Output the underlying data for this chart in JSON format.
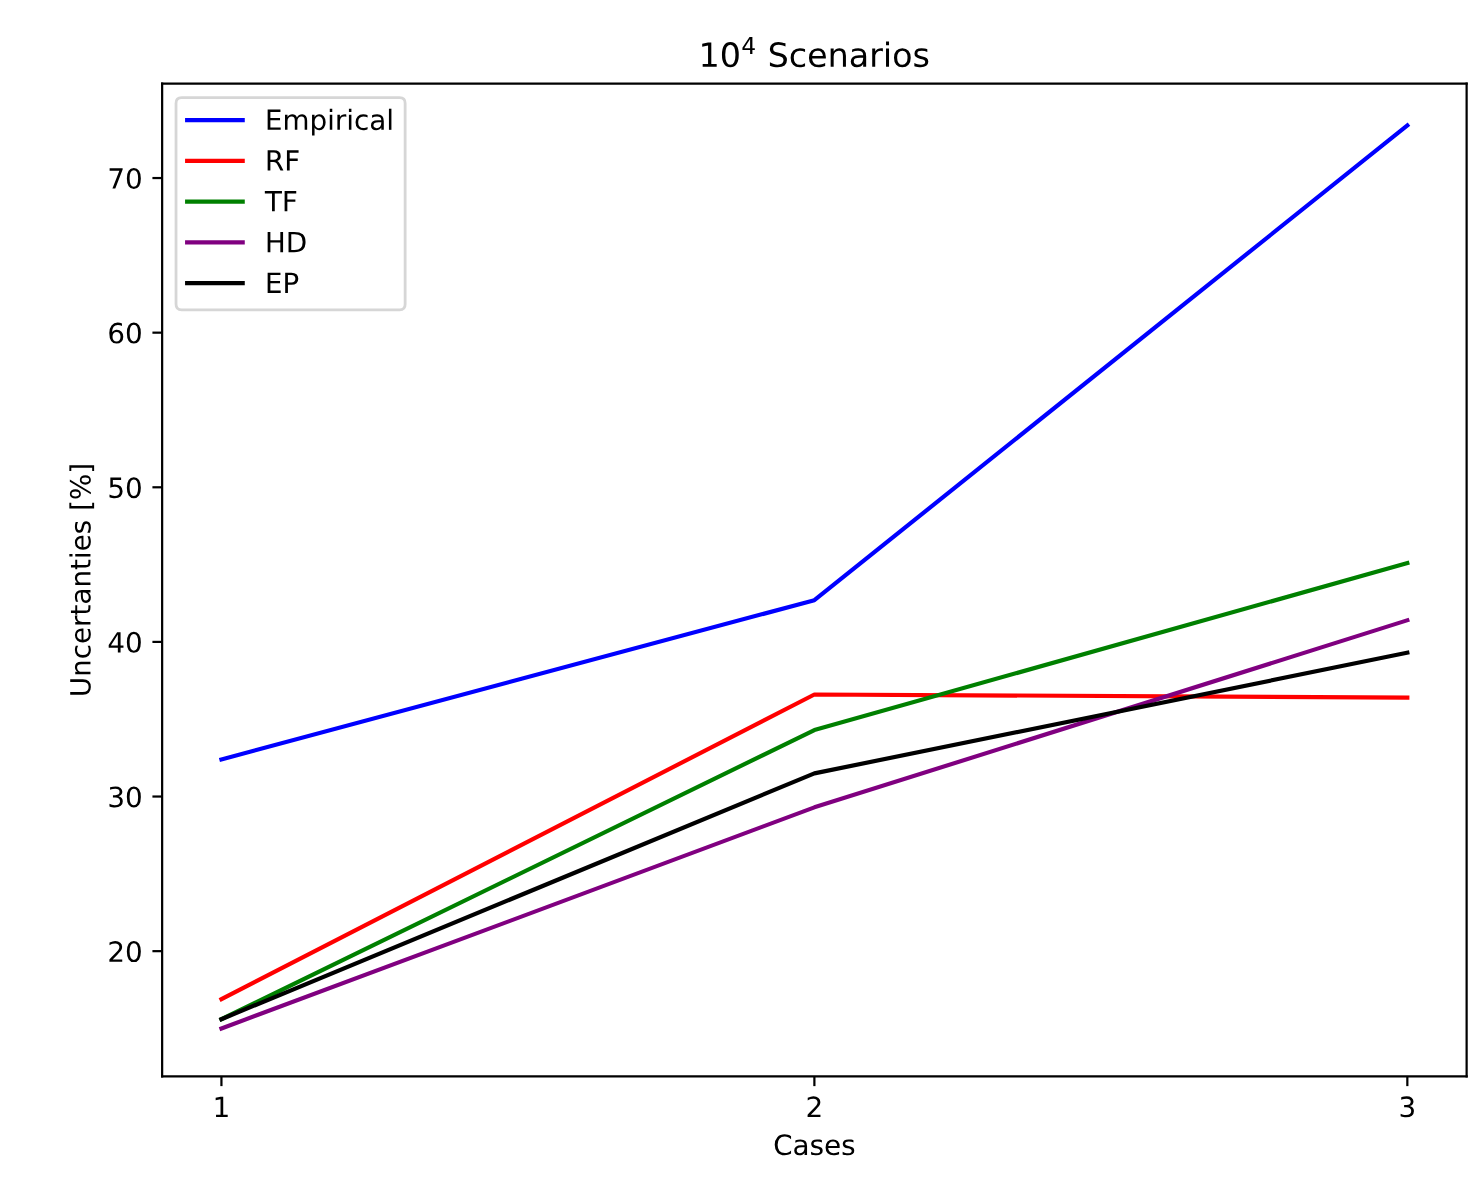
{
  "chart_data": {
    "type": "line",
    "title": "10$^{4}$ Scenarios",
    "xlabel": "Cases",
    "ylabel": "Uncertanties [%]",
    "x": [
      1,
      2,
      3
    ],
    "series": [
      {
        "name": "Empirical",
        "color": "#0000ff",
        "values": [
          32.4,
          42.7,
          73.4
        ]
      },
      {
        "name": "RF",
        "color": "#ff0000",
        "values": [
          16.9,
          36.6,
          36.4
        ]
      },
      {
        "name": "TF",
        "color": "#008000",
        "values": [
          15.6,
          34.3,
          45.1
        ]
      },
      {
        "name": "HD",
        "color": "#800080",
        "values": [
          15.0,
          29.3,
          41.4
        ]
      },
      {
        "name": "EP",
        "color": "#000000",
        "values": [
          15.6,
          31.5,
          39.3
        ]
      }
    ],
    "xlim": [
      0.9,
      3.1
    ],
    "xticks": [
      1,
      2,
      3
    ],
    "ylim": [
      11.9,
      76.1
    ],
    "yticks": [
      20,
      30,
      40,
      50,
      60,
      70
    ],
    "legend": "top left",
    "grid": false,
    "marker": "none",
    "line_style": "solid"
  }
}
